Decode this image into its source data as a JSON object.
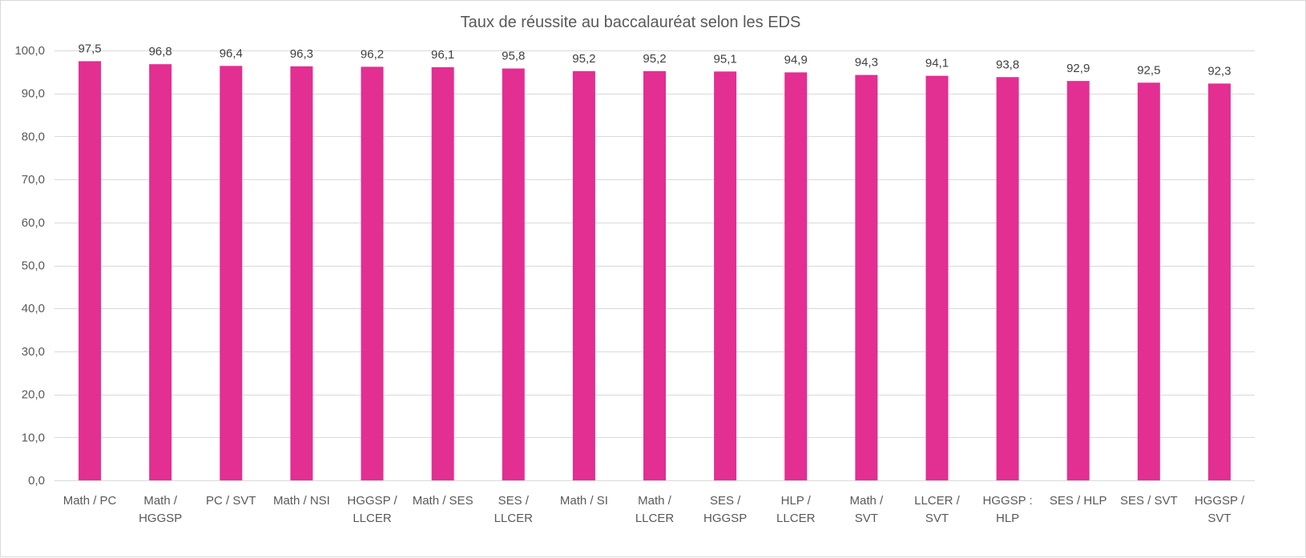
{
  "chart_data": {
    "type": "bar",
    "title": "Taux de réussite au baccalauréat selon les EDS",
    "categories": [
      "Math / PC",
      "Math / HGGSP",
      "PC  / SVT",
      "Math / NSI",
      "HGGSP / LLCER",
      "Math / SES",
      "SES / LLCER",
      "Math / SI",
      "Math / LLCER",
      "SES / HGGSP",
      "HLP / LLCER",
      "Math / SVT",
      "LLCER / SVT",
      "HGGSP : HLP",
      "SES / HLP",
      "SES / SVT",
      "HGGSP / SVT"
    ],
    "category_lines": [
      [
        "Math / PC"
      ],
      [
        "Math /",
        "HGGSP"
      ],
      [
        "PC  / SVT"
      ],
      [
        "Math / NSI"
      ],
      [
        "HGGSP /",
        "LLCER"
      ],
      [
        "Math / SES"
      ],
      [
        "SES /",
        "LLCER"
      ],
      [
        "Math / SI"
      ],
      [
        "Math /",
        "LLCER"
      ],
      [
        "SES /",
        "HGGSP"
      ],
      [
        "HLP /",
        "LLCER"
      ],
      [
        "Math /",
        "SVT"
      ],
      [
        "LLCER /",
        "SVT"
      ],
      [
        "HGGSP :",
        "HLP"
      ],
      [
        "SES / HLP"
      ],
      [
        "SES / SVT"
      ],
      [
        "HGGSP /",
        "SVT"
      ]
    ],
    "values": [
      97.5,
      96.8,
      96.4,
      96.3,
      96.2,
      96.1,
      95.8,
      95.2,
      95.2,
      95.1,
      94.9,
      94.3,
      94.1,
      93.8,
      92.9,
      92.5,
      92.3
    ],
    "data_labels": [
      "97,5",
      "96,8",
      "96,4",
      "96,3",
      "96,2",
      "96,1",
      "95,8",
      "95,2",
      "95,2",
      "95,1",
      "94,9",
      "94,3",
      "94,1",
      "93,8",
      "92,9",
      "92,5",
      "92,3"
    ],
    "y_ticks": [
      0,
      10,
      20,
      30,
      40,
      50,
      60,
      70,
      80,
      90,
      100
    ],
    "y_tick_labels": [
      "0,0",
      "10,0",
      "20,0",
      "30,0",
      "40,0",
      "50,0",
      "60,0",
      "70,0",
      "80,0",
      "90,0",
      "100,0"
    ],
    "ylim": [
      0,
      100
    ],
    "xlabel": "",
    "ylabel": "",
    "grid": true,
    "legend": "none",
    "colors": {
      "bar": "#E32E92",
      "grid": "#d9d9d9",
      "text": "#595959",
      "label": "#404040"
    }
  }
}
